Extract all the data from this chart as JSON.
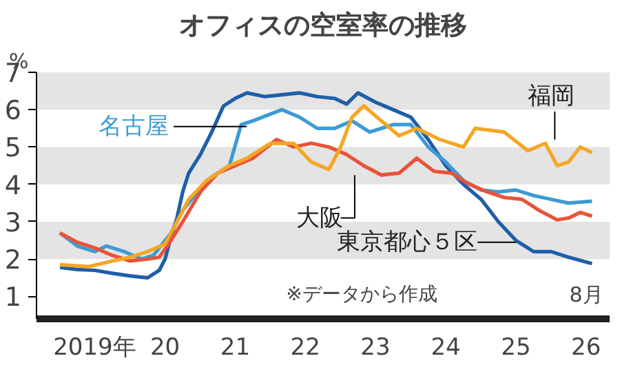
{
  "chart_data": {
    "type": "line",
    "title": "オフィスの空室率の推移",
    "ylabel": "%",
    "xlim": [
      "2018-09",
      "2026-11"
    ],
    "ylim": [
      0.4,
      7
    ],
    "yticks": [
      1,
      2,
      3,
      4,
      5,
      6,
      7
    ],
    "xticks": [
      {
        "value": "2019-07",
        "label": "2019年"
      },
      {
        "value": "2020-07",
        "label": "20"
      },
      {
        "value": "2021-07",
        "label": "21"
      },
      {
        "value": "2022-07",
        "label": "22"
      },
      {
        "value": "2023-07",
        "label": "23"
      },
      {
        "value": "2024-07",
        "label": "24"
      },
      {
        "value": "2025-07",
        "label": "25"
      },
      {
        "value": "2026-07",
        "label": "26"
      }
    ],
    "grid": false,
    "legend": false,
    "bands": [
      {
        "axis": "y",
        "from": 2,
        "to": 3,
        "color": "#e4e4e4"
      },
      {
        "axis": "y",
        "from": 4,
        "to": 5,
        "color": "#e4e4e4"
      },
      {
        "axis": "y",
        "from": 6,
        "to": 7,
        "color": "#e4e4e4"
      }
    ],
    "annotations": [
      "※データから作成",
      "8月"
    ],
    "series": [
      {
        "name": "東京都心５区",
        "color": "#1f5ea8",
        "x": [
          "2019-01",
          "2019-04",
          "2019-07",
          "2019-10",
          "2020-01",
          "2020-04",
          "2020-06",
          "2020-07",
          "2020-08",
          "2020-09",
          "2020-10",
          "2020-11",
          "2021-01",
          "2021-03",
          "2021-05",
          "2021-07",
          "2021-09",
          "2021-12",
          "2022-03",
          "2022-06",
          "2022-09",
          "2022-12",
          "2023-02",
          "2023-04",
          "2023-07",
          "2023-10",
          "2024-01",
          "2024-04",
          "2024-07",
          "2024-10",
          "2025-01",
          "2025-04",
          "2025-07",
          "2025-10",
          "2026-01",
          "2026-04",
          "2026-08"
        ],
        "values": [
          1.78,
          1.72,
          1.7,
          1.62,
          1.55,
          1.5,
          1.7,
          2.0,
          2.6,
          3.1,
          3.8,
          4.3,
          4.8,
          5.4,
          6.1,
          6.3,
          6.45,
          6.35,
          6.4,
          6.45,
          6.35,
          6.3,
          6.15,
          6.45,
          6.2,
          6.0,
          5.8,
          5.2,
          4.5,
          4.0,
          3.6,
          3.0,
          2.5,
          2.2,
          2.2,
          2.05,
          1.88
        ]
      },
      {
        "name": "名古屋",
        "color": "#3d9bd6",
        "x": [
          "2019-01",
          "2019-04",
          "2019-07",
          "2019-09",
          "2019-12",
          "2020-03",
          "2020-05",
          "2020-08",
          "2020-10",
          "2021-01",
          "2021-03",
          "2021-06",
          "2021-08",
          "2021-10",
          "2022-03",
          "2022-06",
          "2022-09",
          "2022-12",
          "2023-03",
          "2023-06",
          "2023-10",
          "2024-01",
          "2024-04",
          "2024-07",
          "2024-10",
          "2025-01",
          "2025-04",
          "2025-07",
          "2025-10",
          "2026-01",
          "2026-04",
          "2026-08"
        ],
        "values": [
          2.7,
          2.35,
          2.2,
          2.35,
          2.2,
          2.0,
          2.1,
          2.7,
          3.3,
          3.9,
          4.2,
          4.5,
          5.6,
          5.7,
          6.0,
          5.8,
          5.5,
          5.5,
          5.7,
          5.4,
          5.6,
          5.6,
          5.0,
          4.6,
          4.1,
          3.85,
          3.8,
          3.85,
          3.7,
          3.6,
          3.5,
          3.55
        ]
      },
      {
        "name": "大阪",
        "color": "#e8533a",
        "x": [
          "2019-01",
          "2019-04",
          "2019-07",
          "2019-10",
          "2020-01",
          "2020-04",
          "2020-06",
          "2020-08",
          "2020-10",
          "2021-01",
          "2021-04",
          "2021-07",
          "2021-10",
          "2022-02",
          "2022-05",
          "2022-08",
          "2022-11",
          "2023-02",
          "2023-05",
          "2023-08",
          "2023-11",
          "2024-02",
          "2024-05",
          "2024-08",
          "2024-11",
          "2025-02",
          "2025-05",
          "2025-08",
          "2025-11",
          "2026-02",
          "2026-04",
          "2026-06",
          "2026-08"
        ],
        "values": [
          2.7,
          2.45,
          2.3,
          2.1,
          1.95,
          2.0,
          2.05,
          2.5,
          3.0,
          3.8,
          4.3,
          4.5,
          4.7,
          5.2,
          5.0,
          5.1,
          5.0,
          4.8,
          4.5,
          4.25,
          4.3,
          4.7,
          4.35,
          4.3,
          4.0,
          3.8,
          3.65,
          3.6,
          3.3,
          3.05,
          3.1,
          3.25,
          3.15
        ]
      },
      {
        "name": "福岡",
        "color": "#f5a623",
        "x": [
          "2019-01",
          "2019-06",
          "2019-10",
          "2020-01",
          "2020-04",
          "2020-07",
          "2020-09",
          "2020-11",
          "2021-02",
          "2021-06",
          "2021-09",
          "2022-01",
          "2022-05",
          "2022-08",
          "2022-11",
          "2023-01",
          "2023-03",
          "2023-05",
          "2023-08",
          "2023-11",
          "2024-02",
          "2024-06",
          "2024-10",
          "2024-12",
          "2025-05",
          "2025-09",
          "2025-12",
          "2026-02",
          "2026-04",
          "2026-06",
          "2026-08"
        ],
        "values": [
          1.85,
          1.8,
          1.95,
          2.05,
          2.2,
          2.4,
          3.0,
          3.6,
          4.1,
          4.5,
          4.7,
          5.1,
          5.1,
          4.6,
          4.4,
          5.0,
          5.8,
          6.1,
          5.7,
          5.3,
          5.5,
          5.2,
          5.0,
          5.5,
          5.4,
          4.9,
          5.1,
          4.5,
          4.6,
          5.0,
          4.85
        ]
      }
    ]
  }
}
